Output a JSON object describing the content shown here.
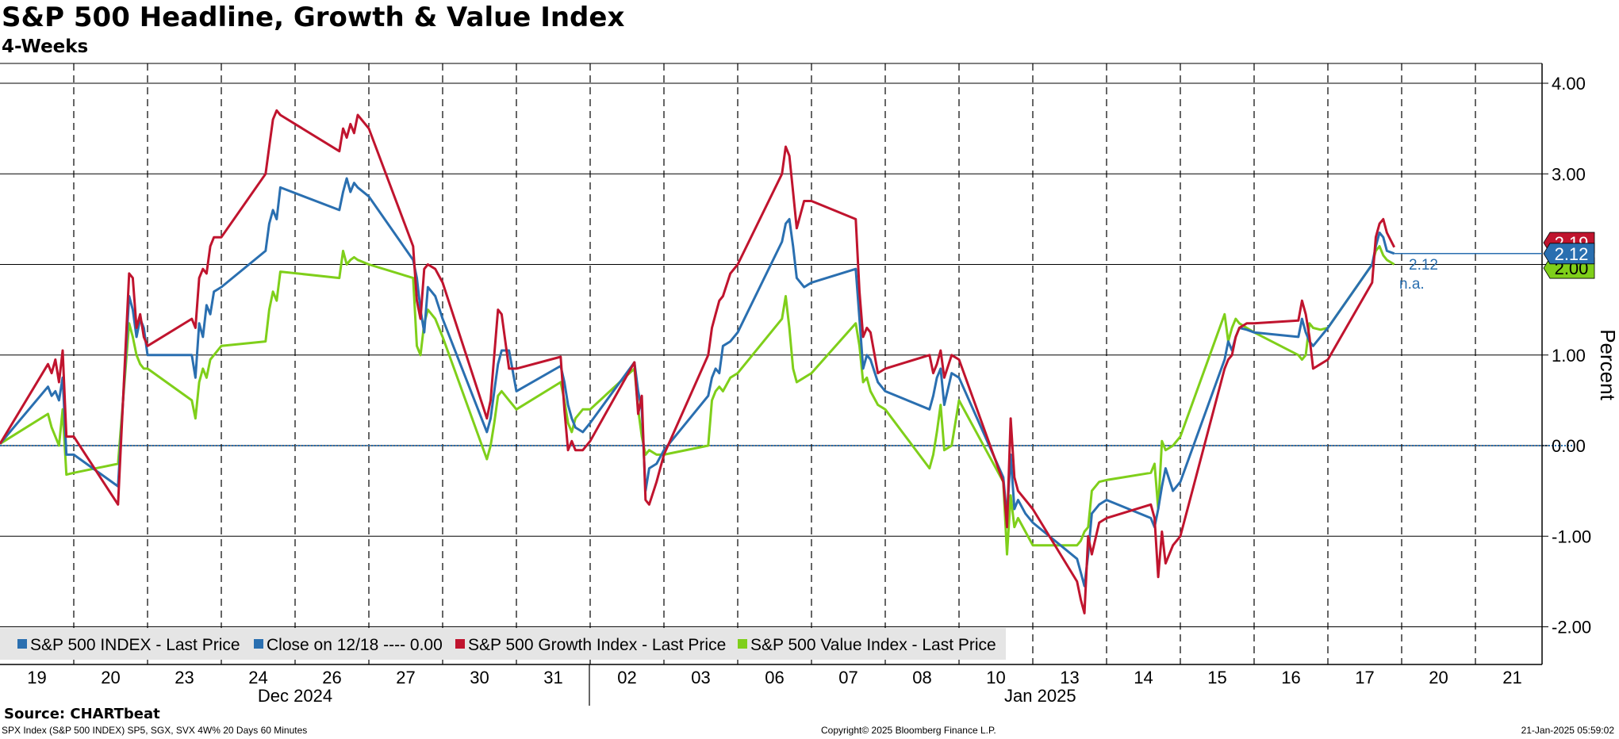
{
  "title": "S&P 500 Headline, Growth & Value Index",
  "subtitle": "4-Weeks",
  "source": "Source: CHARTbeat",
  "footer": {
    "left": "SPX Index (S&P 500 INDEX) SP5, SGX, SVX 4W% 20 Days 60 Minutes",
    "center": "Copyright© 2025 Bloomberg Finance L.P.",
    "right": "21-Jan-2025 05:59:02"
  },
  "colors": {
    "headline": "#2a6fb0",
    "growth": "#c0142e",
    "value": "#7fcf1a",
    "grid": "#000000",
    "legend_bg": "#e5e5e5"
  },
  "chart_data": {
    "type": "line",
    "title": "S&P 500 Headline, Growth & Value Index",
    "subtitle": "4-Weeks",
    "ylabel": "Percent",
    "ylim": [
      -2.5,
      4.2
    ],
    "yticks": [
      "4.00",
      "3.00",
      "2.00",
      "1.00",
      "0.00",
      "-1.00",
      "-2.00"
    ],
    "ytick_values": [
      4,
      3,
      2,
      1,
      0,
      -1,
      -2
    ],
    "x_units": "trading days (index 0 = 19 Dec 2024 open)",
    "xlim": [
      0,
      20.9
    ],
    "x_ticks": [
      {
        "label": "19",
        "x": 0.5
      },
      {
        "label": "20",
        "x": 1.5
      },
      {
        "label": "23",
        "x": 2.5
      },
      {
        "label": "24",
        "x": 3.5
      },
      {
        "label": "26",
        "x": 4.5
      },
      {
        "label": "27",
        "x": 5.5
      },
      {
        "label": "30",
        "x": 6.5
      },
      {
        "label": "31",
        "x": 7.5
      },
      {
        "label": "02",
        "x": 8.5
      },
      {
        "label": "03",
        "x": 9.5
      },
      {
        "label": "06",
        "x": 10.5
      },
      {
        "label": "07",
        "x": 11.5
      },
      {
        "label": "08",
        "x": 12.5
      },
      {
        "label": "10",
        "x": 13.5
      },
      {
        "label": "13",
        "x": 14.5
      },
      {
        "label": "14",
        "x": 15.5
      },
      {
        "label": "15",
        "x": 16.5
      },
      {
        "label": "16",
        "x": 17.5
      },
      {
        "label": "17",
        "x": 18.5
      },
      {
        "label": "20",
        "x": 19.5
      },
      {
        "label": "21",
        "x": 20.5
      }
    ],
    "month_labels": [
      {
        "label": "Dec 2024",
        "x": 4.0
      },
      {
        "label": "Jan 2025",
        "x": 14.1
      }
    ],
    "year_divider_x": 8,
    "day_boundaries": [
      1,
      2,
      3,
      4,
      5,
      6,
      7,
      8,
      9,
      10,
      11,
      12,
      13,
      14,
      15,
      16,
      17,
      18,
      19,
      20
    ],
    "reference_line": {
      "name": "Close on 12/18",
      "value": 0.0,
      "label": "Close on 12/18 ---- 0.00"
    },
    "legend": [
      {
        "key": "headline",
        "label": "S&P 500 INDEX - Last Price"
      },
      {
        "key": "reference",
        "label": "Close on 12/18 ---- 0.00"
      },
      {
        "key": "growth",
        "label": "S&P 500 Growth Index - Last Price"
      },
      {
        "key": "value",
        "label": "S&P 500 Value Index - Last Price"
      }
    ],
    "last_values": {
      "growth": "2.19",
      "headline": "2.12",
      "value": "2.00",
      "annotation_value": "2.12",
      "annotation_na": "n.a."
    },
    "series": [
      {
        "key": "headline",
        "name": "S&P 500 INDEX - Last Price",
        "x": [
          0,
          0.65,
          0.7,
          0.75,
          0.8,
          0.85,
          0.9,
          1.0,
          1.6,
          1.75,
          1.8,
          1.85,
          1.9,
          1.95,
          2.0,
          2.6,
          2.65,
          2.7,
          2.75,
          2.8,
          2.85,
          2.9,
          3.0,
          3.6,
          3.65,
          3.7,
          3.75,
          3.8,
          4.6,
          4.65,
          4.7,
          4.75,
          4.8,
          4.85,
          5.0,
          5.6,
          5.65,
          5.7,
          5.75,
          5.8,
          5.9,
          6.0,
          6.6,
          6.65,
          6.7,
          6.75,
          6.8,
          6.9,
          7.0,
          7.6,
          7.65,
          7.7,
          7.75,
          7.8,
          7.9,
          8.0,
          8.6,
          8.65,
          8.7,
          8.75,
          8.8,
          8.9,
          9.0,
          9.6,
          9.65,
          9.7,
          9.75,
          9.8,
          9.9,
          10.0,
          10.6,
          10.65,
          10.7,
          10.75,
          10.8,
          10.9,
          11.0,
          11.6,
          11.65,
          11.7,
          11.75,
          11.8,
          11.9,
          12.0,
          12.6,
          12.65,
          12.7,
          12.75,
          12.8,
          12.9,
          13.0,
          13.6,
          13.65,
          13.7,
          13.75,
          13.8,
          13.9,
          14.0,
          14.6,
          14.65,
          14.7,
          14.75,
          14.8,
          14.9,
          15.0,
          15.6,
          15.65,
          15.7,
          15.75,
          15.8,
          15.9,
          16.0,
          16.6,
          16.65,
          16.7,
          16.75,
          16.8,
          16.9,
          17.0,
          17.6,
          17.65,
          17.7,
          17.75,
          17.8,
          17.9,
          18.0,
          18.6,
          18.65,
          18.7,
          18.75,
          18.8,
          18.9
        ],
        "y": [
          0.02,
          0.65,
          0.55,
          0.6,
          0.5,
          0.75,
          -0.1,
          -0.1,
          -0.45,
          1.65,
          1.5,
          1.2,
          1.4,
          1.3,
          1.0,
          1.0,
          0.75,
          1.35,
          1.2,
          1.55,
          1.45,
          1.7,
          1.75,
          2.15,
          2.45,
          2.6,
          2.5,
          2.85,
          2.6,
          2.8,
          2.95,
          2.8,
          2.9,
          2.85,
          2.75,
          2.05,
          1.85,
          1.5,
          1.25,
          1.75,
          1.65,
          1.4,
          0.15,
          0.3,
          0.6,
          0.9,
          1.05,
          1.05,
          0.6,
          0.88,
          0.7,
          0.45,
          0.3,
          0.2,
          0.15,
          0.25,
          0.92,
          0.6,
          0.4,
          -0.5,
          -0.25,
          -0.2,
          -0.05,
          0.55,
          0.75,
          0.85,
          0.8,
          1.1,
          1.15,
          1.25,
          2.25,
          2.45,
          2.5,
          2.2,
          1.85,
          1.75,
          1.8,
          1.95,
          1.4,
          0.85,
          1.0,
          0.95,
          0.7,
          0.6,
          0.4,
          0.55,
          0.75,
          0.85,
          0.45,
          0.8,
          0.75,
          -0.35,
          -0.8,
          -0.1,
          -0.7,
          -0.6,
          -0.75,
          -0.85,
          -1.25,
          -1.4,
          -1.55,
          -1.2,
          -0.75,
          -0.65,
          -0.6,
          -0.8,
          -0.9,
          -0.7,
          -0.45,
          -0.25,
          -0.5,
          -0.4,
          0.95,
          1.15,
          1.05,
          1.2,
          1.3,
          1.28,
          1.25,
          1.2,
          1.4,
          1.25,
          1.15,
          1.1,
          1.2,
          1.3,
          2.0,
          2.2,
          2.35,
          2.3,
          2.15,
          2.12
        ]
      },
      {
        "key": "growth",
        "name": "S&P 500 Growth Index - Last Price",
        "x": [
          0,
          0.65,
          0.7,
          0.75,
          0.8,
          0.85,
          0.9,
          1.0,
          1.6,
          1.75,
          1.8,
          1.85,
          1.9,
          1.95,
          2.0,
          2.6,
          2.65,
          2.7,
          2.75,
          2.8,
          2.85,
          2.9,
          3.0,
          3.6,
          3.65,
          3.7,
          3.75,
          3.8,
          4.6,
          4.65,
          4.7,
          4.75,
          4.8,
          4.85,
          5.0,
          5.6,
          5.65,
          5.7,
          5.75,
          5.8,
          5.9,
          6.0,
          6.6,
          6.65,
          6.7,
          6.75,
          6.8,
          6.9,
          7.0,
          7.6,
          7.65,
          7.7,
          7.75,
          7.8,
          7.9,
          8.0,
          8.6,
          8.65,
          8.7,
          8.75,
          8.8,
          8.9,
          9.0,
          9.6,
          9.65,
          9.7,
          9.75,
          9.8,
          9.9,
          10.0,
          10.6,
          10.65,
          10.7,
          10.75,
          10.8,
          10.9,
          11.0,
          11.6,
          11.65,
          11.7,
          11.75,
          11.8,
          11.9,
          12.0,
          12.6,
          12.65,
          12.7,
          12.75,
          12.8,
          12.9,
          13.0,
          13.6,
          13.65,
          13.7,
          13.75,
          13.8,
          13.9,
          14.0,
          14.6,
          14.65,
          14.7,
          14.75,
          14.8,
          14.9,
          15.0,
          15.6,
          15.65,
          15.7,
          15.75,
          15.8,
          15.9,
          16.0,
          16.6,
          16.65,
          16.7,
          16.75,
          16.8,
          16.9,
          17.0,
          17.6,
          17.65,
          17.7,
          17.75,
          17.8,
          17.9,
          18.0,
          18.6,
          18.65,
          18.7,
          18.75,
          18.8,
          18.9
        ],
        "y": [
          0.02,
          0.9,
          0.8,
          0.95,
          0.7,
          1.05,
          0.1,
          0.1,
          -0.65,
          1.9,
          1.85,
          1.3,
          1.45,
          1.2,
          1.1,
          1.4,
          1.3,
          1.85,
          1.95,
          1.9,
          2.2,
          2.3,
          2.3,
          3.0,
          3.3,
          3.6,
          3.7,
          3.65,
          3.25,
          3.5,
          3.4,
          3.55,
          3.45,
          3.65,
          3.5,
          2.2,
          1.6,
          1.4,
          1.95,
          2.0,
          1.95,
          1.8,
          0.3,
          0.5,
          1.0,
          1.5,
          1.45,
          0.85,
          0.85,
          0.98,
          0.4,
          -0.05,
          0.05,
          -0.05,
          -0.05,
          0.05,
          0.92,
          0.35,
          0.55,
          -0.6,
          -0.65,
          -0.4,
          -0.1,
          1.0,
          1.3,
          1.45,
          1.6,
          1.65,
          1.9,
          2.0,
          3.0,
          3.3,
          3.2,
          2.8,
          2.4,
          2.7,
          2.7,
          2.5,
          1.7,
          1.2,
          1.3,
          1.25,
          0.8,
          0.85,
          1.0,
          0.8,
          0.9,
          1.05,
          0.75,
          1.0,
          0.95,
          -0.4,
          -0.9,
          0.3,
          -0.35,
          -0.5,
          -0.6,
          -0.7,
          -1.5,
          -1.7,
          -1.85,
          -1.0,
          -1.2,
          -0.85,
          -0.8,
          -0.65,
          -0.8,
          -1.45,
          -0.95,
          -1.3,
          -1.1,
          -1.0,
          0.85,
          0.95,
          1.0,
          1.2,
          1.3,
          1.35,
          1.35,
          1.38,
          1.6,
          1.45,
          1.2,
          0.85,
          0.9,
          0.95,
          1.8,
          2.3,
          2.45,
          2.5,
          2.35,
          2.19
        ]
      },
      {
        "key": "value",
        "name": "S&P 500 Value Index - Last Price",
        "x": [
          0,
          0.65,
          0.7,
          0.75,
          0.8,
          0.85,
          0.9,
          1.0,
          1.6,
          1.75,
          1.8,
          1.85,
          1.9,
          1.95,
          2.0,
          2.6,
          2.65,
          2.7,
          2.75,
          2.8,
          2.85,
          2.9,
          3.0,
          3.6,
          3.65,
          3.7,
          3.75,
          3.8,
          4.6,
          4.65,
          4.7,
          4.75,
          4.8,
          4.85,
          5.0,
          5.6,
          5.65,
          5.7,
          5.75,
          5.8,
          5.9,
          6.0,
          6.6,
          6.65,
          6.7,
          6.75,
          6.8,
          6.9,
          7.0,
          7.6,
          7.65,
          7.7,
          7.75,
          7.8,
          7.9,
          8.0,
          8.6,
          8.65,
          8.7,
          8.75,
          8.8,
          8.9,
          9.0,
          9.6,
          9.65,
          9.7,
          9.75,
          9.8,
          9.9,
          10.0,
          10.6,
          10.65,
          10.7,
          10.75,
          10.8,
          10.9,
          11.0,
          11.6,
          11.65,
          11.7,
          11.75,
          11.8,
          11.9,
          12.0,
          12.6,
          12.65,
          12.7,
          12.75,
          12.8,
          12.9,
          13.0,
          13.6,
          13.65,
          13.7,
          13.75,
          13.8,
          13.9,
          14.0,
          14.6,
          14.65,
          14.7,
          14.75,
          14.8,
          14.9,
          15.0,
          15.6,
          15.65,
          15.7,
          15.75,
          15.8,
          15.9,
          16.0,
          16.6,
          16.65,
          16.7,
          16.75,
          16.8,
          16.9,
          17.0,
          17.6,
          17.65,
          17.7,
          17.75,
          17.8,
          17.9,
          18.0,
          18.6,
          18.65,
          18.7,
          18.75,
          18.8,
          18.9
        ],
        "y": [
          0.02,
          0.35,
          0.2,
          0.1,
          0.0,
          0.4,
          -0.32,
          -0.3,
          -0.2,
          1.35,
          1.2,
          1.0,
          0.9,
          0.85,
          0.85,
          0.5,
          0.3,
          0.7,
          0.85,
          0.75,
          0.95,
          1.0,
          1.1,
          1.15,
          1.5,
          1.7,
          1.6,
          1.92,
          1.85,
          2.15,
          2.0,
          2.05,
          2.08,
          2.05,
          2.0,
          1.85,
          1.1,
          1.0,
          1.35,
          1.5,
          1.4,
          1.2,
          -0.15,
          0.0,
          0.25,
          0.55,
          0.6,
          0.5,
          0.4,
          0.7,
          0.5,
          0.25,
          0.15,
          0.3,
          0.4,
          0.4,
          0.85,
          0.4,
          0.1,
          -0.1,
          -0.05,
          -0.1,
          -0.1,
          0.0,
          0.5,
          0.6,
          0.65,
          0.6,
          0.75,
          0.8,
          1.4,
          1.65,
          1.3,
          0.85,
          0.7,
          0.75,
          0.8,
          1.35,
          1.1,
          0.7,
          0.75,
          0.6,
          0.45,
          0.4,
          -0.25,
          -0.1,
          0.15,
          0.45,
          -0.05,
          0.0,
          0.5,
          -0.4,
          -1.2,
          -0.55,
          -0.9,
          -0.8,
          -0.95,
          -1.1,
          -1.1,
          -1.05,
          -0.95,
          -0.9,
          -0.5,
          -0.4,
          -0.38,
          -0.3,
          -0.2,
          -0.7,
          0.05,
          -0.05,
          0.0,
          0.1,
          1.45,
          1.15,
          1.3,
          1.4,
          1.35,
          1.3,
          1.25,
          1.0,
          0.95,
          1.0,
          1.35,
          1.3,
          1.28,
          1.3,
          2.0,
          2.15,
          2.2,
          2.1,
          2.05,
          2.0
        ]
      }
    ]
  }
}
